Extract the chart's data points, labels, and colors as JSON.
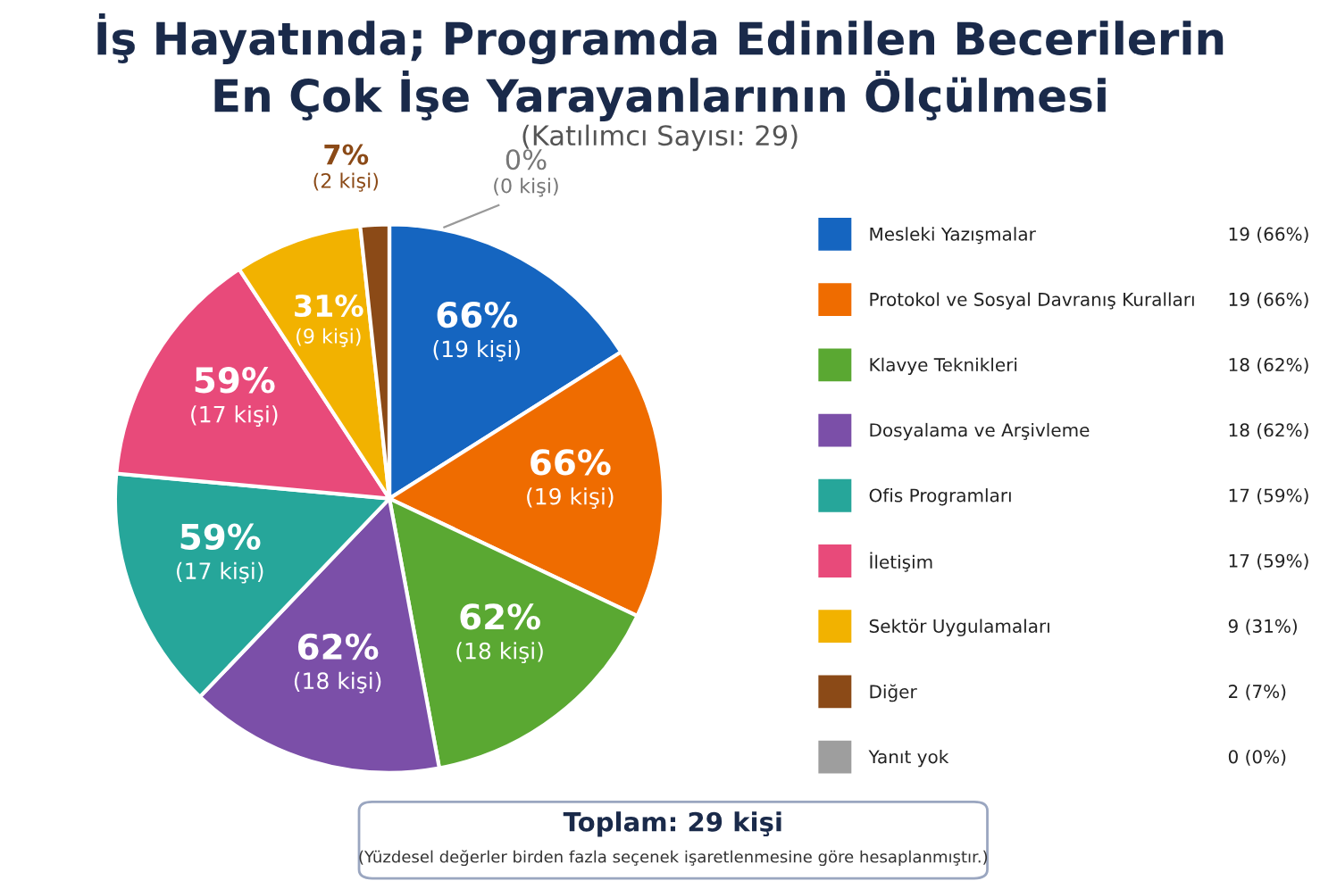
{
  "chart_data": {
    "type": "pie",
    "title": "İş Hayatında; Programda Edinilen Becerilerin\nEn Çok İşe Yarayanlarının Ölçülmesi",
    "subtitle": "(Katılımcı Sayısı: 29)",
    "categories": [
      "Mesleki Yazışmalar",
      "Protokol ve Sosyal Davranış Kuralları",
      "Klavye Teknikleri",
      "Dosyalama ve Arşivleme",
      "Ofis Programları",
      "İletişim",
      "Sektör Uygulamaları",
      "Diğer",
      "Yanıt yok"
    ],
    "values": [
      66,
      66,
      62,
      62,
      59,
      59,
      31,
      7,
      0
    ],
    "value_labels": [
      "66%\n(19 kişi)",
      "66%\n(19 kişi)",
      "62%\n(18 kişi)",
      "62%\n(18 kişi)",
      "59%\n(17 kişi)",
      "59%\n(17 kişi)",
      "31%\n(9 kişi)",
      "7%\n(2 kişi)",
      "0%\n(0 kişi)"
    ],
    "colors": [
      "#1565c0",
      "#ef6c00",
      "#5aa832",
      "#7b4fa8",
      "#26a69a",
      "#e84a7a",
      "#f2b200",
      "#8b4a17",
      "#9e9e9e"
    ],
    "legend": "right",
    "annotations": [
      "19 (66%)",
      "19 (66%)",
      "18 (62%)",
      "18 (62%)",
      "17 (59%)",
      "17 (59%)",
      "9 (31%)",
      "2 (7%)",
      "0 (0%)",
      "Toplam: 29 kişi",
      "(Yüzdesel değerler birden fazla seçenek işaretlenmesine göre hesaplanmıştır.)"
    ]
  }
}
